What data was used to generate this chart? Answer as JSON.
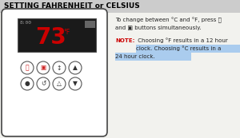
{
  "title": "SETTING FAHRENHEIT or CELSIUS",
  "title_bg": "#cccccc",
  "title_color": "#000000",
  "bg_color": "#f2f2ee",
  "device_bg": "#ffffff",
  "device_border": "#444444",
  "screen_bg": "#1a1a1a",
  "screen_time": "8:00",
  "screen_temp": "73",
  "screen_temp_color": "#cc0000",
  "screen_time_color": "#999999",
  "screen_deg": "°F",
  "note_highlight_color": "#aaccee",
  "note_color": "#cc0000",
  "note_body_color": "#222222",
  "btn_border": "#555555",
  "btn_red": "#cc2222",
  "btn_dark": "#333333",
  "instr1": "To change between °C and °F, press ⓨ",
  "instr2": "and ▣ buttons simultaneously.",
  "note_label": "NOTE:",
  "note_line1": " Choosing °F results in a 12 hour",
  "note_line2": "clock. Choosing °C results in a",
  "note_line3": "24 hour clock."
}
